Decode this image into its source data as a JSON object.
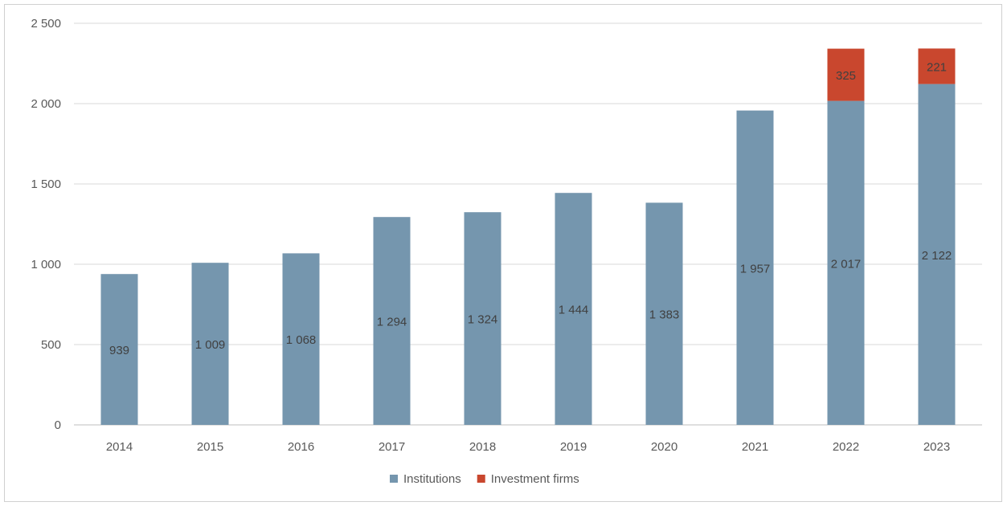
{
  "chart_data": {
    "type": "bar",
    "stacked": true,
    "categories": [
      "2014",
      "2015",
      "2016",
      "2017",
      "2018",
      "2019",
      "2020",
      "2021",
      "2022",
      "2023"
    ],
    "series": [
      {
        "name": "Institutions",
        "color": "#7596ae",
        "values": [
          939,
          1009,
          1068,
          1294,
          1324,
          1444,
          1383,
          1957,
          2017,
          2122
        ],
        "labels": [
          "939",
          "1 009",
          "1 068",
          "1 294",
          "1 324",
          "1 444",
          "1 383",
          "1 957",
          "2 017",
          "2 122"
        ]
      },
      {
        "name": "Investment firms",
        "color": "#c9472e",
        "values": [
          null,
          null,
          null,
          null,
          null,
          null,
          null,
          null,
          325,
          221
        ],
        "labels": [
          "",
          "",
          "",
          "",
          "",
          "",
          "",
          "",
          "325",
          "221"
        ]
      }
    ],
    "ylim": [
      0,
      2500
    ],
    "yticks": [
      0,
      500,
      1000,
      1500,
      2000,
      2500
    ],
    "ytick_labels": [
      "0",
      "500",
      "1 000",
      "1 500",
      "2 000",
      "2 500"
    ],
    "grid": true,
    "legend_position": "bottom"
  }
}
